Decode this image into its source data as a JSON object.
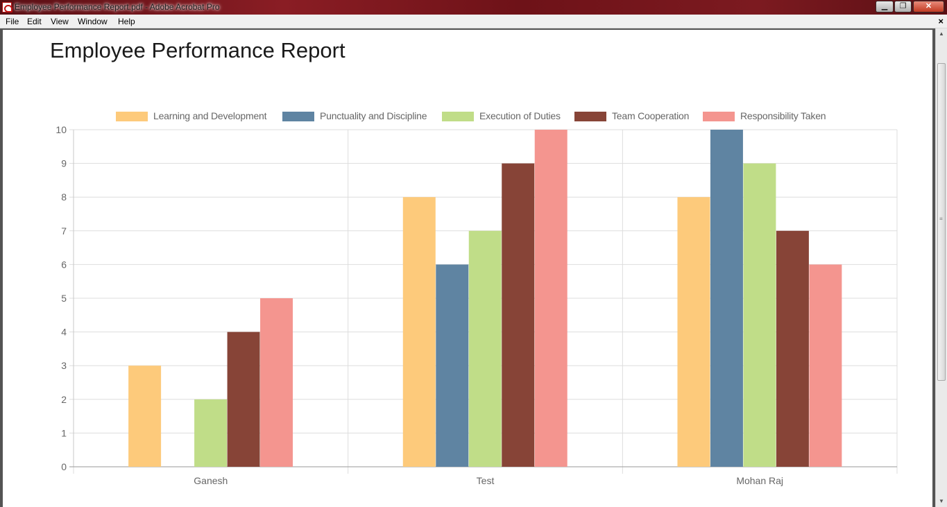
{
  "window": {
    "title": "Employee Performance Report.pdf - Adobe Acrobat Pro",
    "minimize_label": "▁",
    "maximize_label": "❐",
    "close_label": "✕"
  },
  "menubar": {
    "items": [
      "File",
      "Edit",
      "View",
      "Window",
      "Help"
    ],
    "close_label": "×"
  },
  "report": {
    "title": "Employee Performance Report"
  },
  "colors": {
    "series": [
      "#fdca7b",
      "#5f84a2",
      "#c0dd88",
      "#874437",
      "#f4958f"
    ],
    "grid": "#dddddd",
    "axis_text": "#666666"
  },
  "chart_data": {
    "type": "bar",
    "categories": [
      "Ganesh",
      "Test",
      "Mohan Raj"
    ],
    "series": [
      {
        "name": "Learning and Development",
        "values": [
          3,
          8,
          8
        ]
      },
      {
        "name": "Punctuality and Discipline",
        "values": [
          0,
          6,
          10
        ]
      },
      {
        "name": "Execution of Duties",
        "values": [
          2,
          7,
          9
        ]
      },
      {
        "name": "Team Cooperation",
        "values": [
          4,
          9,
          7
        ]
      },
      {
        "name": "Responsibility Taken",
        "values": [
          5,
          10,
          6
        ]
      }
    ],
    "ylim": [
      0,
      10
    ],
    "yticks": [
      0,
      1,
      2,
      3,
      4,
      5,
      6,
      7,
      8,
      9,
      10
    ],
    "grid": true,
    "legend": "top-center"
  }
}
